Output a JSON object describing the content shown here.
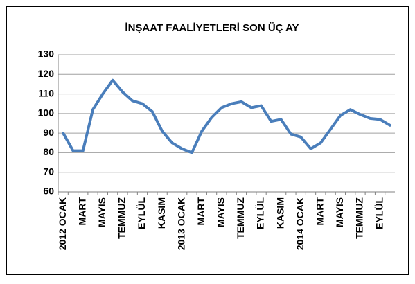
{
  "chart_data": {
    "type": "line",
    "title": "İNŞAAT FAALİYETLERİ SON ÜÇ AY",
    "categories": [
      "2012 OCAK",
      null,
      "MART",
      null,
      "MAYIS",
      null,
      "TEMMUZ",
      null,
      "EYLÜL",
      null,
      "KASIM",
      null,
      "2013 OCAK",
      null,
      "MART",
      null,
      "MAYIS",
      null,
      "TEMMUZ",
      null,
      "EYLÜL",
      null,
      "KASIM",
      null,
      "2014 OCAK",
      null,
      "MART",
      null,
      "MAYIS",
      null,
      "TEMMUZ",
      null,
      "EYLÜL",
      null
    ],
    "series": [
      {
        "color": "#4a7ebb",
        "values": [
          90,
          81,
          81,
          102,
          110,
          117,
          111,
          106.5,
          105,
          101,
          91,
          85,
          82,
          80,
          91,
          98,
          103,
          105,
          106,
          103,
          104,
          96,
          97,
          89.5,
          88,
          82,
          85,
          92,
          99,
          102,
          99.5,
          97.5,
          97,
          94
        ]
      }
    ],
    "ylim": [
      60,
      130
    ],
    "yticks": [
      60,
      70,
      80,
      90,
      100,
      110,
      120,
      130
    ],
    "grid": true
  }
}
